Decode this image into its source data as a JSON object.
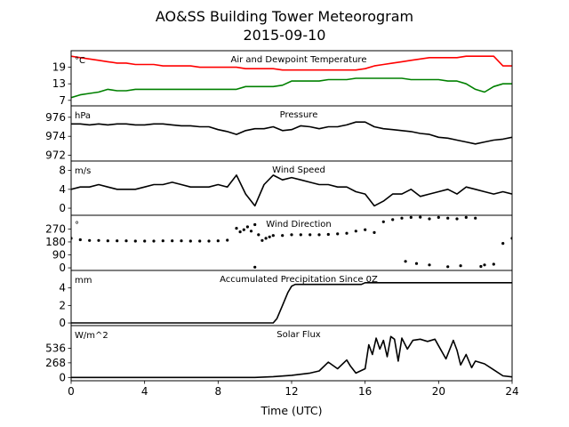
{
  "title_line1": "AO&SS Building Tower Meteorogram",
  "title_line2": "2015-09-10",
  "chart_data": {
    "type": "line",
    "xlabel": "Time (UTC)",
    "xlim": [
      0,
      24
    ],
    "xticks": [
      0,
      4,
      8,
      12,
      16,
      20,
      24
    ],
    "panels": [
      {
        "title": "Air and Dewpoint Temperature",
        "unit": "°C",
        "ylim": [
          5,
          25
        ],
        "yticks": [
          7,
          13,
          19
        ],
        "series": [
          {
            "color": "#ff0000",
            "style": "line",
            "x": [
              0,
              0.5,
              1,
              1.5,
              2,
              2.5,
              3,
              3.5,
              4,
              4.5,
              5,
              5.5,
              6,
              6.5,
              7,
              7.5,
              8,
              8.5,
              9,
              9.5,
              10,
              10.5,
              11,
              11.5,
              12,
              12.5,
              13,
              13.5,
              14,
              14.5,
              15,
              15.5,
              16,
              16.5,
              17,
              17.5,
              18,
              18.5,
              19,
              19.5,
              20,
              20.5,
              21,
              21.5,
              22,
              22.5,
              23,
              23.5,
              24
            ],
            "y": [
              23,
              22.5,
              22,
              21.5,
              21,
              20.5,
              20.5,
              20,
              20,
              20,
              19.5,
              19.5,
              19.5,
              19.5,
              19,
              19,
              19,
              19,
              19,
              18.5,
              18.5,
              18.5,
              18.5,
              18,
              18,
              18,
              18,
              18,
              18,
              18,
              18,
              18,
              18.5,
              19.5,
              20,
              20.5,
              21,
              21.5,
              22,
              22.5,
              22.5,
              22.5,
              22.5,
              23,
              23,
              23,
              23,
              19.5,
              19.5
            ]
          },
          {
            "color": "#008000",
            "style": "line",
            "x": [
              0,
              0.5,
              1,
              1.5,
              2,
              2.5,
              3,
              3.5,
              4,
              4.5,
              5,
              5.5,
              6,
              6.5,
              7,
              7.5,
              8,
              8.5,
              9,
              9.5,
              10,
              10.5,
              11,
              11.5,
              12,
              12.5,
              13,
              13.5,
              14,
              14.5,
              15,
              15.5,
              16,
              16.5,
              17,
              17.5,
              18,
              18.5,
              19,
              19.5,
              20,
              20.5,
              21,
              21.5,
              22,
              22.5,
              23,
              23.5,
              24
            ],
            "y": [
              8,
              9,
              9.5,
              10,
              11,
              10.5,
              10.5,
              11,
              11,
              11,
              11,
              11,
              11,
              11,
              11,
              11,
              11,
              11,
              11,
              12,
              12,
              12,
              12,
              12.5,
              14,
              14,
              14,
              14,
              14.5,
              14.5,
              14.5,
              15,
              15,
              15,
              15,
              15,
              15,
              14.5,
              14.5,
              14.5,
              14.5,
              14,
              14,
              13,
              11,
              10,
              12,
              13,
              13
            ]
          }
        ]
      },
      {
        "title": "Pressure",
        "unit": "hPa",
        "ylim": [
          971.4,
          977.2
        ],
        "yticks": [
          972,
          974,
          976
        ],
        "series": [
          {
            "color": "#000000",
            "style": "line",
            "x": [
              0,
              0.5,
              1,
              1.5,
              2,
              2.5,
              3,
              3.5,
              4,
              4.5,
              5,
              5.5,
              6,
              6.5,
              7,
              7.5,
              8,
              8.5,
              9,
              9.5,
              10,
              10.5,
              11,
              11.5,
              12,
              12.5,
              13,
              13.5,
              14,
              14.5,
              15,
              15.5,
              16,
              16.5,
              17,
              17.5,
              18,
              18.5,
              19,
              19.5,
              20,
              20.5,
              21,
              21.5,
              22,
              22.5,
              23,
              23.5,
              24
            ],
            "y": [
              975.3,
              975.3,
              975.2,
              975.3,
              975.2,
              975.3,
              975.3,
              975.2,
              975.2,
              975.3,
              975.3,
              975.2,
              975.1,
              975.1,
              975,
              975,
              974.7,
              974.5,
              974.2,
              974.6,
              974.8,
              974.8,
              975,
              974.6,
              974.7,
              975.1,
              975,
              974.8,
              975,
              975,
              975.2,
              975.5,
              975.5,
              975,
              974.8,
              974.7,
              974.6,
              974.5,
              974.3,
              974.2,
              973.9,
              973.8,
              973.6,
              973.4,
              973.2,
              973.4,
              973.6,
              973.7,
              973.9
            ]
          }
        ]
      },
      {
        "title": "Wind Speed",
        "unit": "m/s",
        "ylim": [
          -1.5,
          10
        ],
        "yticks": [
          0,
          4,
          8
        ],
        "series": [
          {
            "color": "#000000",
            "style": "line",
            "x": [
              0,
              0.5,
              1,
              1.5,
              2,
              2.5,
              3,
              3.5,
              4,
              4.5,
              5,
              5.5,
              6,
              6.5,
              7,
              7.5,
              8,
              8.5,
              9,
              9.5,
              10,
              10.5,
              11,
              11.5,
              12,
              12.5,
              13,
              13.5,
              14,
              14.5,
              15,
              15.5,
              16,
              16.5,
              17,
              17.5,
              18,
              18.5,
              19,
              19.5,
              20,
              20.5,
              21,
              21.5,
              22,
              22.5,
              23,
              23.5,
              24
            ],
            "y": [
              4,
              4.5,
              4.5,
              5,
              4.5,
              4,
              4,
              4,
              4.5,
              5,
              5,
              5.5,
              5,
              4.5,
              4.5,
              4.5,
              5,
              4.5,
              7,
              3,
              0.5,
              5,
              7,
              6,
              6.5,
              6,
              5.5,
              5,
              5,
              4.5,
              4.5,
              3.5,
              3,
              0.5,
              1.5,
              3,
              3,
              4,
              2.5,
              3,
              3.5,
              4,
              3,
              4.5,
              4,
              3.5,
              3,
              3.5,
              3
            ]
          }
        ]
      },
      {
        "title": "Wind Direction",
        "unit": "°",
        "ylim": [
          -18,
          365
        ],
        "yticks": [
          0,
          90,
          180,
          270
        ],
        "series": [
          {
            "color": "#000000",
            "style": "dots",
            "x": [
              0,
              0.5,
              1,
              1.5,
              2,
              2.5,
              3,
              3.5,
              4,
              4.5,
              5,
              5.5,
              6,
              6.5,
              7,
              7.5,
              8,
              8.5,
              9,
              9.2,
              9.4,
              9.6,
              9.8,
              10,
              10.2,
              10.4,
              10.6,
              10.8,
              11,
              11.5,
              12,
              12.5,
              13,
              13.5,
              14,
              14.5,
              15,
              15.5,
              16,
              16.5,
              17,
              17.5,
              18,
              18.5,
              19,
              19.5,
              20,
              20.5,
              21,
              21.5,
              22,
              22.5,
              23,
              23.5,
              24
            ],
            "y": [
              205,
              195,
              190,
              190,
              188,
              188,
              188,
              186,
              186,
              186,
              188,
              188,
              188,
              186,
              186,
              186,
              188,
              192,
              275,
              250,
              265,
              285,
              255,
              300,
              230,
              190,
              205,
              215,
              225,
              225,
              230,
              230,
              230,
              230,
              232,
              236,
              240,
              255,
              265,
              245,
              320,
              335,
              345,
              350,
              352,
              340,
              350,
              345,
              340,
              350,
              345,
              20,
              25,
              170,
              205
            ]
          },
          {
            "color": "#000000",
            "style": "dots",
            "x": [
              10,
              18.2,
              18.8,
              19.5,
              20.5,
              21.2,
              22.3
            ],
            "y": [
              5,
              45,
              30,
              20,
              8,
              15,
              10
            ]
          }
        ]
      },
      {
        "title": "Accumulated Precipitation Since 0Z",
        "unit": "mm",
        "ylim": [
          -0.3,
          6
        ],
        "yticks": [
          0,
          2,
          4
        ],
        "series": [
          {
            "color": "#000000",
            "style": "line",
            "x": [
              0,
              11,
              11.2,
              11.5,
              11.8,
              12,
              12.2,
              15.8,
              16,
              24
            ],
            "y": [
              0,
              0,
              0.5,
              2,
              3.5,
              4.2,
              4.4,
              4.4,
              4.6,
              4.6
            ]
          }
        ]
      },
      {
        "title": "Solar Flux",
        "unit": "W/m^2",
        "ylim": [
          -60,
          950
        ],
        "yticks": [
          0,
          268,
          536
        ],
        "series": [
          {
            "color": "#000000",
            "style": "line",
            "x": [
              0,
              10,
              11,
              12,
              13,
              13.5,
              14,
              14.5,
              15,
              15.2,
              15.5,
              16,
              16.2,
              16.4,
              16.6,
              16.8,
              17,
              17.2,
              17.4,
              17.6,
              17.8,
              18,
              18.3,
              18.6,
              19,
              19.4,
              19.8,
              20,
              20.4,
              20.8,
              21,
              21.2,
              21.5,
              21.8,
              22,
              22.5,
              23,
              23.5,
              24
            ],
            "y": [
              0,
              0,
              15,
              40,
              80,
              120,
              280,
              160,
              320,
              210,
              80,
              160,
              600,
              420,
              720,
              520,
              680,
              380,
              750,
              700,
              300,
              720,
              520,
              680,
              700,
              660,
              700,
              580,
              340,
              680,
              500,
              230,
              420,
              180,
              300,
              250,
              140,
              30,
              10
            ]
          }
        ]
      }
    ]
  }
}
